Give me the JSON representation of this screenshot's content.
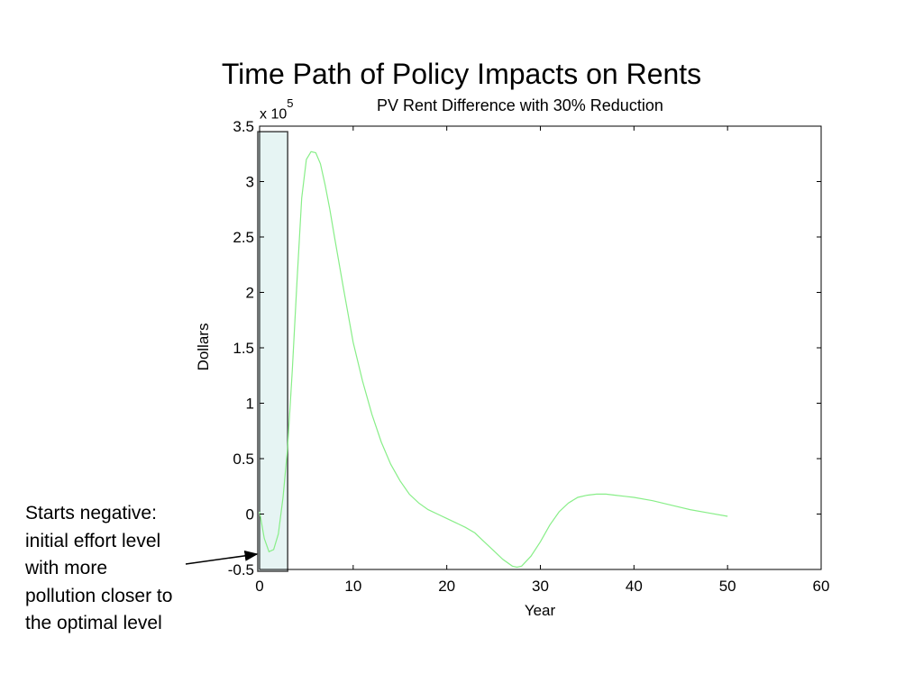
{
  "slide_title": "Time Path of Policy Impacts on Rents",
  "annotation_lines": [
    "Starts negative:",
    "initial effort level",
    "with  more",
    "pollution closer to",
    "the optimal level"
  ],
  "colors": {
    "line": "#88ee88",
    "highlight_fill": "#e6f4f3",
    "highlight_stroke": "#444444",
    "axes": "#000000"
  },
  "chart_data": {
    "type": "line",
    "title": "PV Rent Difference with 30% Reduction",
    "xlabel": "Year",
    "ylabel": "Dollars",
    "y_multiplier": {
      "base": "x 10",
      "exponent": "5"
    },
    "xlim": [
      0,
      60
    ],
    "ylim": [
      -0.5,
      3.5
    ],
    "xticks": [
      0,
      10,
      20,
      30,
      40,
      50,
      60
    ],
    "yticks": [
      -0.5,
      0,
      0.5,
      1,
      1.5,
      2,
      2.5,
      3,
      3.5
    ],
    "xtick_labels": [
      "0",
      "10",
      "20",
      "30",
      "40",
      "50",
      "60"
    ],
    "ytick_labels": [
      "-0.5",
      "0",
      "0.5",
      "1",
      "1.5",
      "2",
      "2.5",
      "3",
      "3.5"
    ],
    "grid": false,
    "highlight_region": {
      "x": [
        0,
        3
      ],
      "y": [
        -0.5,
        3.45
      ]
    },
    "series": [
      {
        "x": [
          0,
          0.5,
          1,
          1.5,
          2,
          2.5,
          3,
          3.5,
          4,
          4.5,
          5,
          5.5,
          6,
          6.5,
          7,
          7.5,
          8,
          9,
          10,
          11,
          12,
          13,
          14,
          15,
          16,
          17,
          18,
          19,
          20,
          21,
          22,
          23,
          24,
          25,
          26,
          27,
          27.5,
          28,
          29,
          30,
          31,
          32,
          33,
          34,
          35,
          36,
          37,
          38,
          39,
          40,
          42,
          44,
          46,
          48,
          50
        ],
        "y": [
          0.02,
          -0.22,
          -0.34,
          -0.32,
          -0.18,
          0.15,
          0.6,
          1.3,
          2.1,
          2.85,
          3.2,
          3.27,
          3.26,
          3.16,
          2.97,
          2.75,
          2.5,
          2.02,
          1.55,
          1.2,
          0.9,
          0.65,
          0.45,
          0.3,
          0.18,
          0.1,
          0.04,
          0.0,
          -0.04,
          -0.08,
          -0.12,
          -0.17,
          -0.25,
          -0.33,
          -0.41,
          -0.47,
          -0.48,
          -0.47,
          -0.38,
          -0.25,
          -0.1,
          0.02,
          0.1,
          0.15,
          0.17,
          0.18,
          0.18,
          0.17,
          0.16,
          0.15,
          0.12,
          0.08,
          0.04,
          0.01,
          -0.02
        ]
      }
    ]
  }
}
